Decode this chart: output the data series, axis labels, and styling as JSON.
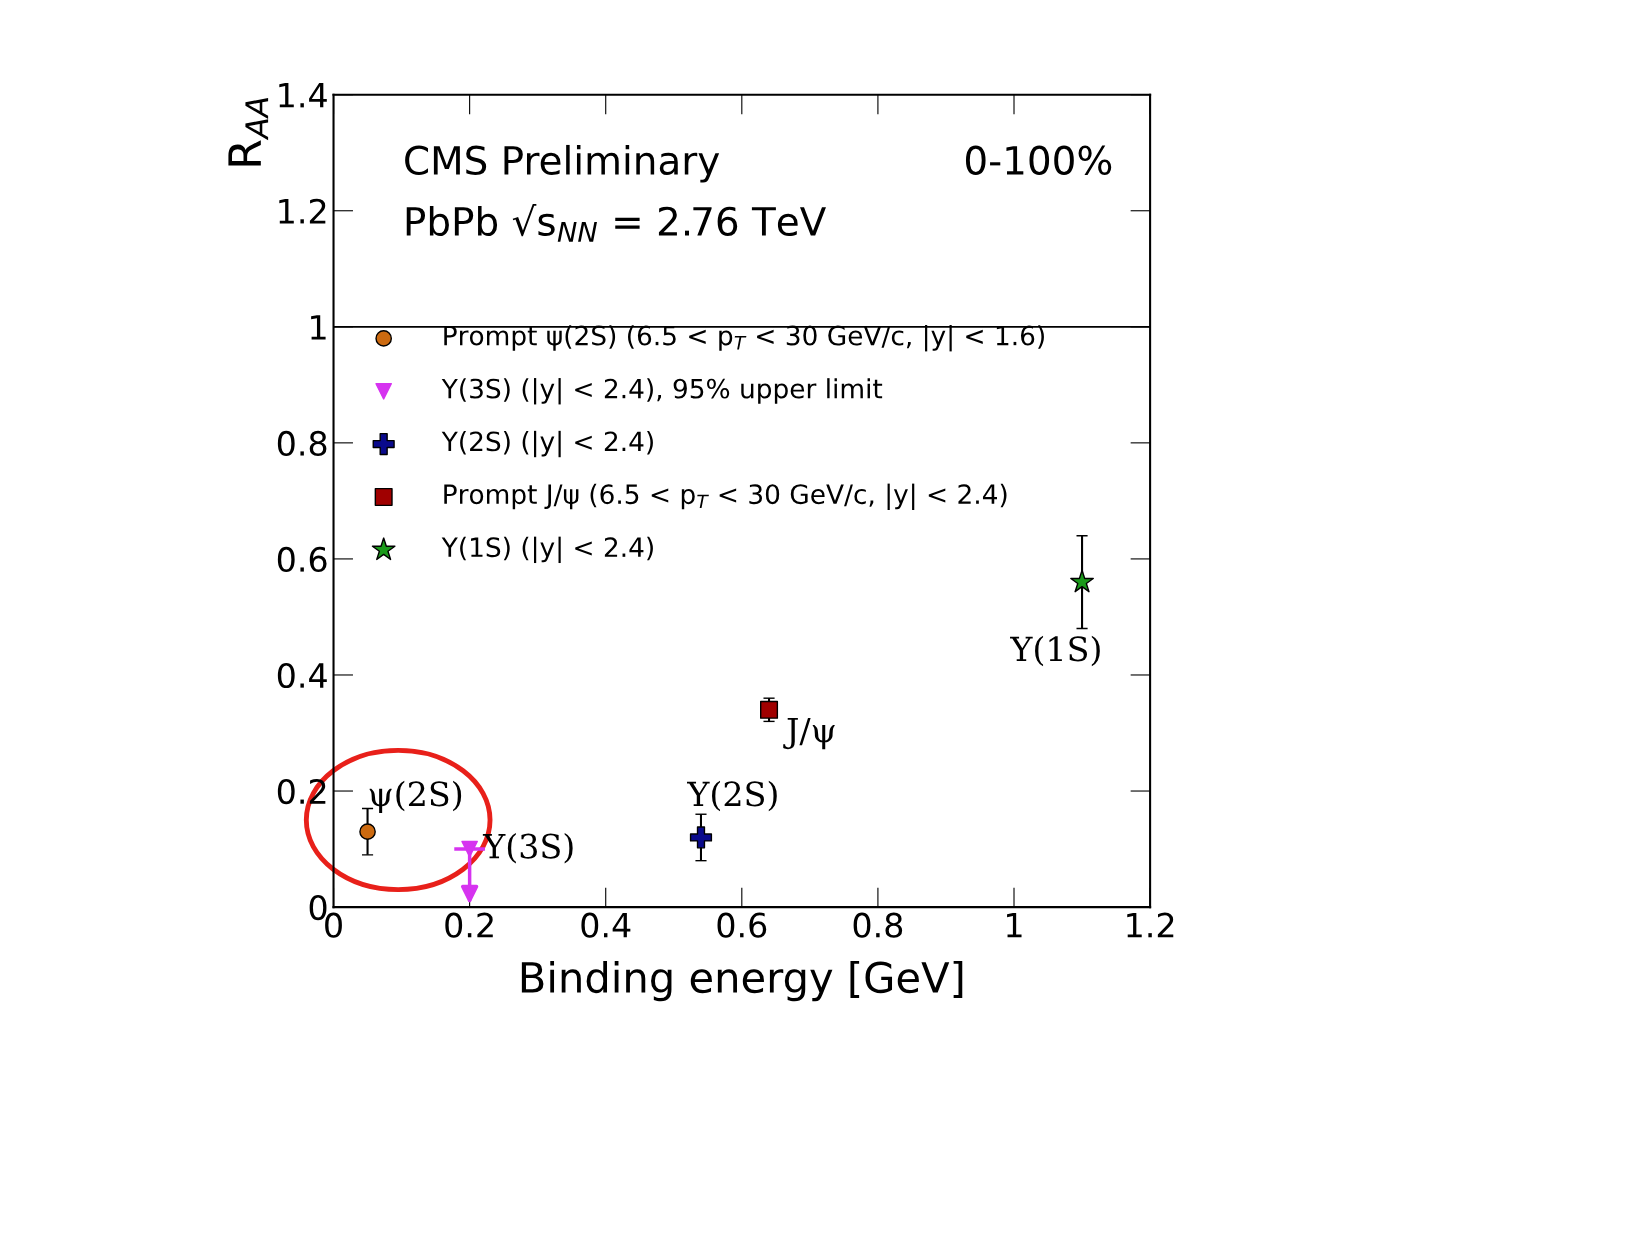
{
  "chart_data": {
    "type": "scatter",
    "xlabel": "Binding energy [GeV]",
    "ylabel": "R$_{AA}$",
    "xlim": [
      0,
      1.2
    ],
    "ylim": [
      0,
      1.4
    ],
    "xticks": [
      0,
      0.2,
      0.4,
      0.6,
      0.8,
      1,
      1.2
    ],
    "yticks": [
      0,
      0.2,
      0.4,
      0.6,
      0.8,
      1,
      1.2,
      1.4
    ],
    "grid": false,
    "legend": "left",
    "series": [
      {
        "name": "Prompt ψ(2S) (6.5 < p$_{T}$ < 30 GeV/c, |y| < 1.6)",
        "color": "#cc6a10",
        "marker": "circle",
        "x": [
          0.05
        ],
        "values": [
          0.13
        ],
        "errors": [
          0.04
        ]
      },
      {
        "name": "Υ(3S) (|y| < 2.4), 95% upper limit",
        "color": "#d633f0",
        "marker": "triangle",
        "x": [
          0.2
        ],
        "values": [
          0.1
        ]
      },
      {
        "name": "Υ(2S) (|y| < 2.4)",
        "color": "#0a0a8c",
        "marker": "cross",
        "x": [
          0.54
        ],
        "values": [
          0.12
        ],
        "errors": [
          0.04
        ]
      },
      {
        "name": "Prompt J/ψ (6.5 < p$_{T}$ < 30 GeV/c, |y| < 2.4)",
        "color": "#a00000",
        "marker": "square",
        "x": [
          0.64
        ],
        "values": [
          0.34
        ],
        "errors": [
          0.02
        ]
      },
      {
        "name": "Υ(1S) (|y| < 2.4)",
        "color": "#1a9a1a",
        "marker": "star",
        "x": [
          1.1
        ],
        "values": [
          0.56
        ],
        "errors": [
          0.08
        ]
      }
    ],
    "ref_lines": [
      {
        "axis": "y",
        "value": 1,
        "color": "#000000"
      }
    ],
    "annotations": [
      "CMS Preliminary",
      "0-100%",
      "PbPb √s$_{NN}$ = 2.76 TeV",
      {
        "text": "ψ(2S)",
        "x": 0.05,
        "y": 0.13
      },
      {
        "text": "Υ(3S)",
        "x": 0.2,
        "y": 0.1
      },
      {
        "text": "Υ(2S)",
        "x": 0.54,
        "y": 0.12
      },
      {
        "text": "J/ψ",
        "x": 0.64,
        "y": 0.34
      },
      {
        "text": "Υ(1S)",
        "x": 1.1,
        "y": 0.56
      }
    ]
  }
}
